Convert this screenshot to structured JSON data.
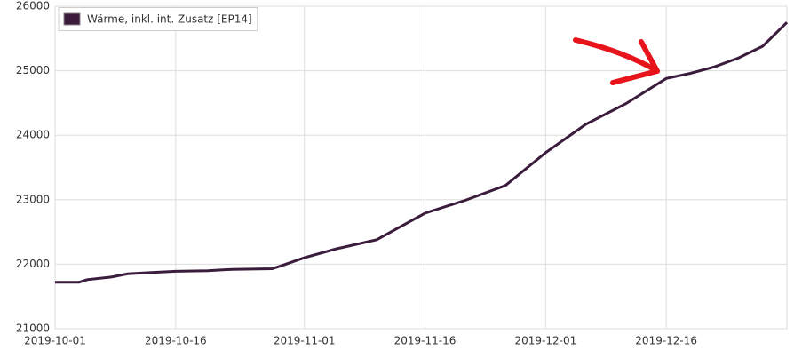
{
  "chart_data": {
    "type": "line",
    "x": [
      "2019-10-01",
      "2019-10-04",
      "2019-10-05",
      "2019-10-08",
      "2019-10-10",
      "2019-10-13",
      "2019-10-16",
      "2019-10-20",
      "2019-10-23",
      "2019-10-28",
      "2019-10-29",
      "2019-11-01",
      "2019-11-05",
      "2019-11-10",
      "2019-11-16",
      "2019-11-21",
      "2019-11-26",
      "2019-12-01",
      "2019-12-06",
      "2019-12-11",
      "2019-12-16",
      "2019-12-19",
      "2019-12-22",
      "2019-12-25",
      "2019-12-28",
      "2019-12-31"
    ],
    "series": [
      {
        "name": "Wärme, inkl. int. Zusatz [EP14]",
        "color": "#3c1c3c",
        "values": [
          21720,
          21720,
          21760,
          21800,
          21850,
          21870,
          21890,
          21900,
          21920,
          21930,
          21970,
          22100,
          22240,
          22380,
          22790,
          22990,
          23220,
          23730,
          24170,
          24490,
          24880,
          24960,
          25060,
          25200,
          25380,
          25750
        ]
      }
    ],
    "xlim": [
      "2019-10-01",
      "2019-12-31"
    ],
    "xticks": [
      "2019-10-01",
      "2019-10-16",
      "2019-11-01",
      "2019-11-16",
      "2019-12-01",
      "2019-12-16"
    ],
    "ylim": [
      21000,
      26000
    ],
    "yticks": [
      21000,
      22000,
      23000,
      24000,
      25000,
      26000
    ],
    "grid": true,
    "legend": "top-left"
  }
}
